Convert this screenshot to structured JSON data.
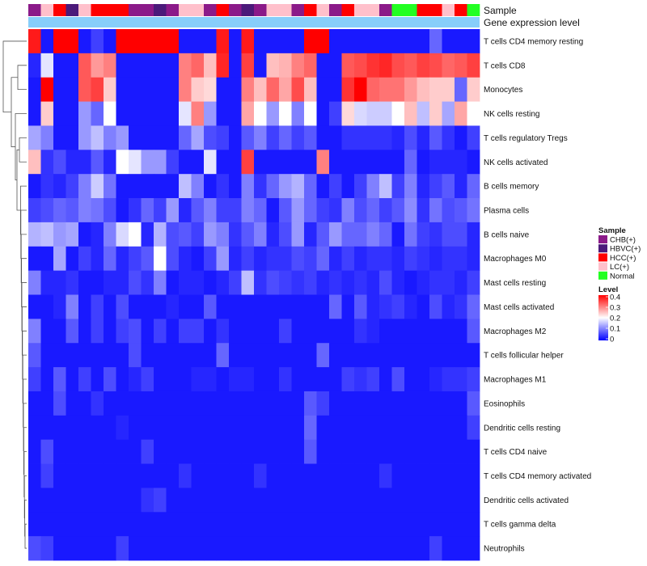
{
  "chart_data": {
    "type": "heatmap",
    "title": "",
    "column_annotation_tracks": [
      "Sample",
      "Gene expression level"
    ],
    "sample_groups": [
      {
        "name": "CHB(+)",
        "color": "#8B1A89"
      },
      {
        "name": "HBVC(+)",
        "color": "#4B1A7A"
      },
      {
        "name": "HCC(+)",
        "color": "#FF0000"
      },
      {
        "name": "LC(+)",
        "color": "#FFC0CB"
      },
      {
        "name": "Normal",
        "color": "#22FF22"
      }
    ],
    "column_samples": [
      "CHB(+)",
      "LC(+)",
      "HCC(+)",
      "HBVC(+)",
      "LC(+)",
      "HCC(+)",
      "HCC(+)",
      "HCC(+)",
      "CHB(+)",
      "CHB(+)",
      "HBVC(+)",
      "CHB(+)",
      "LC(+)",
      "LC(+)",
      "CHB(+)",
      "HCC(+)",
      "CHB(+)",
      "HBVC(+)",
      "CHB(+)",
      "LC(+)",
      "LC(+)",
      "CHB(+)",
      "HCC(+)",
      "LC(+)",
      "CHB(+)",
      "HCC(+)",
      "LC(+)",
      "LC(+)",
      "CHB(+)",
      "Normal",
      "Normal",
      "HCC(+)",
      "HCC(+)",
      "LC(+)",
      "HCC(+)",
      "Normal"
    ],
    "expression_track_color": "#87CEFA",
    "rows": [
      "T cells CD4 memory resting",
      "T cells CD8",
      "Monocytes",
      "NK cells resting",
      "T cells regulatory  Tregs",
      "NK cells activated",
      "B cells memory",
      "Plasma cells",
      "B cells naive",
      "Macrophages M0",
      "Mast cells resting",
      "Mast cells activated",
      "Macrophages M2",
      "T cells follicular helper",
      "Macrophages M1",
      "Eosinophils",
      "Dendritic cells resting",
      "T cells CD4 naive",
      "T cells CD4 memory activated",
      "Dendritic cells activated",
      "T cells gamma delta",
      "Neutrophils"
    ],
    "values": [
      [
        0.38,
        0.02,
        0.42,
        0.42,
        0.02,
        0.05,
        0.02,
        0.42,
        0.42,
        0.42,
        0.42,
        0.42,
        0.02,
        0.02,
        0.02,
        0.38,
        0.02,
        0.38,
        0.02,
        0.02,
        0.02,
        0.02,
        0.42,
        0.42,
        0.02,
        0.02,
        0.02,
        0.02,
        0.02,
        0.02,
        0.02,
        0.02,
        0.08,
        0.02,
        0.02,
        0.02
      ],
      [
        0.03,
        0.18,
        0.02,
        0.02,
        0.33,
        0.28,
        0.3,
        0.02,
        0.02,
        0.02,
        0.02,
        0.02,
        0.3,
        0.32,
        0.25,
        0.37,
        0.02,
        0.35,
        0.02,
        0.25,
        0.26,
        0.3,
        0.32,
        0.02,
        0.02,
        0.33,
        0.34,
        0.36,
        0.37,
        0.34,
        0.33,
        0.35,
        0.34,
        0.32,
        0.33,
        0.35
      ],
      [
        0.02,
        0.42,
        0.02,
        0.02,
        0.33,
        0.35,
        0.24,
        0.02,
        0.02,
        0.02,
        0.02,
        0.02,
        0.3,
        0.24,
        0.23,
        0.02,
        0.02,
        0.3,
        0.25,
        0.32,
        0.27,
        0.34,
        0.25,
        0.02,
        0.02,
        0.36,
        0.4,
        0.32,
        0.31,
        0.31,
        0.28,
        0.25,
        0.24,
        0.24,
        0.08,
        0.24
      ],
      [
        0.02,
        0.24,
        0.02,
        0.02,
        0.12,
        0.08,
        0.2,
        0.02,
        0.02,
        0.02,
        0.02,
        0.02,
        0.18,
        0.3,
        0.12,
        0.02,
        0.02,
        0.27,
        0.2,
        0.12,
        0.2,
        0.1,
        0.2,
        0.02,
        0.05,
        0.23,
        0.17,
        0.16,
        0.16,
        0.2,
        0.25,
        0.15,
        0.24,
        0.13,
        0.27,
        0.2
      ],
      [
        0.13,
        0.1,
        0.02,
        0.02,
        0.12,
        0.15,
        0.1,
        0.12,
        0.02,
        0.02,
        0.02,
        0.02,
        0.08,
        0.13,
        0.06,
        0.05,
        0.02,
        0.07,
        0.1,
        0.05,
        0.08,
        0.05,
        0.07,
        0.02,
        0.02,
        0.04,
        0.04,
        0.04,
        0.04,
        0.03,
        0.06,
        0.03,
        0.07,
        0.04,
        0.02,
        0.05
      ],
      [
        0.25,
        0.04,
        0.06,
        0.03,
        0.03,
        0.07,
        0.03,
        0.2,
        0.18,
        0.12,
        0.12,
        0.05,
        0.02,
        0.02,
        0.18,
        0.02,
        0.02,
        0.35,
        0.02,
        0.02,
        0.02,
        0.02,
        0.02,
        0.3,
        0.02,
        0.02,
        0.02,
        0.02,
        0.02,
        0.02,
        0.08,
        0.02,
        0.03,
        0.03,
        0.03,
        0.02
      ],
      [
        0.02,
        0.04,
        0.03,
        0.05,
        0.1,
        0.16,
        0.09,
        0.02,
        0.02,
        0.02,
        0.02,
        0.02,
        0.15,
        0.1,
        0.02,
        0.04,
        0.02,
        0.1,
        0.04,
        0.08,
        0.12,
        0.14,
        0.08,
        0.02,
        0.05,
        0.02,
        0.05,
        0.1,
        0.15,
        0.05,
        0.1,
        0.03,
        0.05,
        0.07,
        0.03,
        0.08
      ],
      [
        0.05,
        0.06,
        0.08,
        0.07,
        0.1,
        0.09,
        0.06,
        0.02,
        0.04,
        0.08,
        0.05,
        0.12,
        0.03,
        0.07,
        0.1,
        0.05,
        0.05,
        0.1,
        0.08,
        0.02,
        0.07,
        0.12,
        0.08,
        0.05,
        0.04,
        0.1,
        0.06,
        0.08,
        0.05,
        0.07,
        0.11,
        0.04,
        0.09,
        0.06,
        0.07,
        0.09
      ],
      [
        0.14,
        0.15,
        0.12,
        0.13,
        0.02,
        0.03,
        0.1,
        0.17,
        0.2,
        0.03,
        0.14,
        0.06,
        0.07,
        0.05,
        0.12,
        0.1,
        0.04,
        0.07,
        0.1,
        0.03,
        0.06,
        0.12,
        0.03,
        0.07,
        0.12,
        0.08,
        0.08,
        0.1,
        0.08,
        0.02,
        0.09,
        0.05,
        0.04,
        0.06,
        0.06,
        0.03
      ],
      [
        0.02,
        0.02,
        0.13,
        0.02,
        0.05,
        0.03,
        0.08,
        0.03,
        0.05,
        0.07,
        0.2,
        0.06,
        0.03,
        0.02,
        0.05,
        0.12,
        0.03,
        0.05,
        0.03,
        0.04,
        0.04,
        0.06,
        0.05,
        0.08,
        0.03,
        0.05,
        0.03,
        0.04,
        0.04,
        0.03,
        0.05,
        0.04,
        0.03,
        0.04,
        0.04,
        0.03
      ],
      [
        0.1,
        0.03,
        0.03,
        0.04,
        0.02,
        0.02,
        0.03,
        0.03,
        0.06,
        0.04,
        0.1,
        0.02,
        0.03,
        0.03,
        0.02,
        0.03,
        0.05,
        0.15,
        0.04,
        0.06,
        0.05,
        0.04,
        0.05,
        0.03,
        0.04,
        0.03,
        0.04,
        0.03,
        0.06,
        0.03,
        0.02,
        0.03,
        0.04,
        0.04,
        0.03,
        0.05
      ],
      [
        0.02,
        0.02,
        0.03,
        0.1,
        0.02,
        0.05,
        0.02,
        0.06,
        0.02,
        0.02,
        0.02,
        0.03,
        0.02,
        0.02,
        0.07,
        0.02,
        0.02,
        0.02,
        0.02,
        0.02,
        0.02,
        0.02,
        0.02,
        0.02,
        0.08,
        0.02,
        0.07,
        0.03,
        0.04,
        0.05,
        0.03,
        0.02,
        0.06,
        0.03,
        0.04,
        0.08
      ],
      [
        0.1,
        0.02,
        0.02,
        0.07,
        0.02,
        0.05,
        0.02,
        0.05,
        0.06,
        0.02,
        0.05,
        0.02,
        0.05,
        0.05,
        0.02,
        0.04,
        0.02,
        0.02,
        0.02,
        0.02,
        0.05,
        0.02,
        0.02,
        0.02,
        0.02,
        0.02,
        0.04,
        0.03,
        0.02,
        0.02,
        0.02,
        0.02,
        0.02,
        0.02,
        0.02,
        0.07
      ],
      [
        0.07,
        0.02,
        0.02,
        0.02,
        0.02,
        0.02,
        0.02,
        0.02,
        0.06,
        0.02,
        0.02,
        0.02,
        0.02,
        0.02,
        0.02,
        0.08,
        0.02,
        0.02,
        0.02,
        0.02,
        0.02,
        0.02,
        0.02,
        0.08,
        0.02,
        0.02,
        0.02,
        0.02,
        0.02,
        0.02,
        0.02,
        0.02,
        0.02,
        0.02,
        0.02,
        0.02
      ],
      [
        0.05,
        0.02,
        0.07,
        0.02,
        0.05,
        0.02,
        0.06,
        0.02,
        0.03,
        0.05,
        0.02,
        0.02,
        0.02,
        0.03,
        0.03,
        0.02,
        0.03,
        0.03,
        0.02,
        0.02,
        0.04,
        0.02,
        0.02,
        0.02,
        0.02,
        0.05,
        0.04,
        0.05,
        0.02,
        0.06,
        0.02,
        0.02,
        0.03,
        0.04,
        0.04,
        0.05
      ],
      [
        0.02,
        0.02,
        0.06,
        0.02,
        0.02,
        0.04,
        0.02,
        0.02,
        0.02,
        0.02,
        0.02,
        0.02,
        0.02,
        0.02,
        0.02,
        0.02,
        0.02,
        0.02,
        0.02,
        0.02,
        0.02,
        0.02,
        0.07,
        0.05,
        0.02,
        0.02,
        0.02,
        0.02,
        0.02,
        0.02,
        0.02,
        0.02,
        0.02,
        0.02,
        0.02,
        0.07
      ],
      [
        0.02,
        0.02,
        0.02,
        0.02,
        0.02,
        0.02,
        0.02,
        0.03,
        0.02,
        0.02,
        0.02,
        0.02,
        0.02,
        0.02,
        0.02,
        0.02,
        0.02,
        0.02,
        0.02,
        0.02,
        0.02,
        0.02,
        0.08,
        0.02,
        0.02,
        0.02,
        0.02,
        0.02,
        0.02,
        0.02,
        0.02,
        0.02,
        0.02,
        0.02,
        0.02,
        0.05
      ],
      [
        0.02,
        0.06,
        0.02,
        0.02,
        0.02,
        0.02,
        0.02,
        0.02,
        0.02,
        0.05,
        0.02,
        0.02,
        0.02,
        0.02,
        0.02,
        0.02,
        0.02,
        0.02,
        0.02,
        0.02,
        0.02,
        0.02,
        0.07,
        0.02,
        0.02,
        0.02,
        0.02,
        0.02,
        0.02,
        0.02,
        0.02,
        0.02,
        0.02,
        0.02,
        0.02,
        0.02
      ],
      [
        0.02,
        0.05,
        0.02,
        0.02,
        0.02,
        0.02,
        0.02,
        0.02,
        0.02,
        0.02,
        0.02,
        0.02,
        0.04,
        0.02,
        0.02,
        0.02,
        0.02,
        0.02,
        0.04,
        0.02,
        0.02,
        0.02,
        0.02,
        0.02,
        0.02,
        0.02,
        0.02,
        0.02,
        0.04,
        0.02,
        0.02,
        0.02,
        0.02,
        0.02,
        0.02,
        0.02
      ],
      [
        0.02,
        0.02,
        0.02,
        0.02,
        0.02,
        0.02,
        0.02,
        0.02,
        0.02,
        0.04,
        0.05,
        0.02,
        0.02,
        0.02,
        0.02,
        0.02,
        0.02,
        0.02,
        0.02,
        0.02,
        0.02,
        0.02,
        0.02,
        0.02,
        0.02,
        0.02,
        0.02,
        0.02,
        0.02,
        0.02,
        0.02,
        0.02,
        0.02,
        0.02,
        0.02,
        0.02
      ],
      [
        0.02,
        0.02,
        0.02,
        0.02,
        0.02,
        0.02,
        0.02,
        0.02,
        0.02,
        0.02,
        0.02,
        0.02,
        0.02,
        0.02,
        0.02,
        0.02,
        0.02,
        0.02,
        0.02,
        0.02,
        0.02,
        0.02,
        0.02,
        0.02,
        0.02,
        0.02,
        0.02,
        0.02,
        0.02,
        0.02,
        0.02,
        0.02,
        0.02,
        0.02,
        0.02,
        0.02
      ],
      [
        0.06,
        0.05,
        0.02,
        0.02,
        0.02,
        0.02,
        0.02,
        0.05,
        0.02,
        0.02,
        0.02,
        0.02,
        0.02,
        0.02,
        0.02,
        0.02,
        0.02,
        0.02,
        0.02,
        0.02,
        0.02,
        0.02,
        0.02,
        0.02,
        0.02,
        0.02,
        0.02,
        0.02,
        0.02,
        0.02,
        0.02,
        0.02,
        0.05,
        0.02,
        0.02,
        0.02
      ]
    ],
    "color_scale": {
      "name": "Level",
      "min": 0,
      "max": 0.4,
      "stops": [
        {
          "value": 0,
          "color": "#0000FF"
        },
        {
          "value": 0.2,
          "color": "#FFFFFF"
        },
        {
          "value": 0.4,
          "color": "#FF0000"
        }
      ]
    },
    "legend": {
      "sample_title": "Sample",
      "level_title": "Level",
      "level_ticks": [
        "0.4",
        "0.3",
        "0.2",
        "0.1",
        "0"
      ]
    }
  }
}
